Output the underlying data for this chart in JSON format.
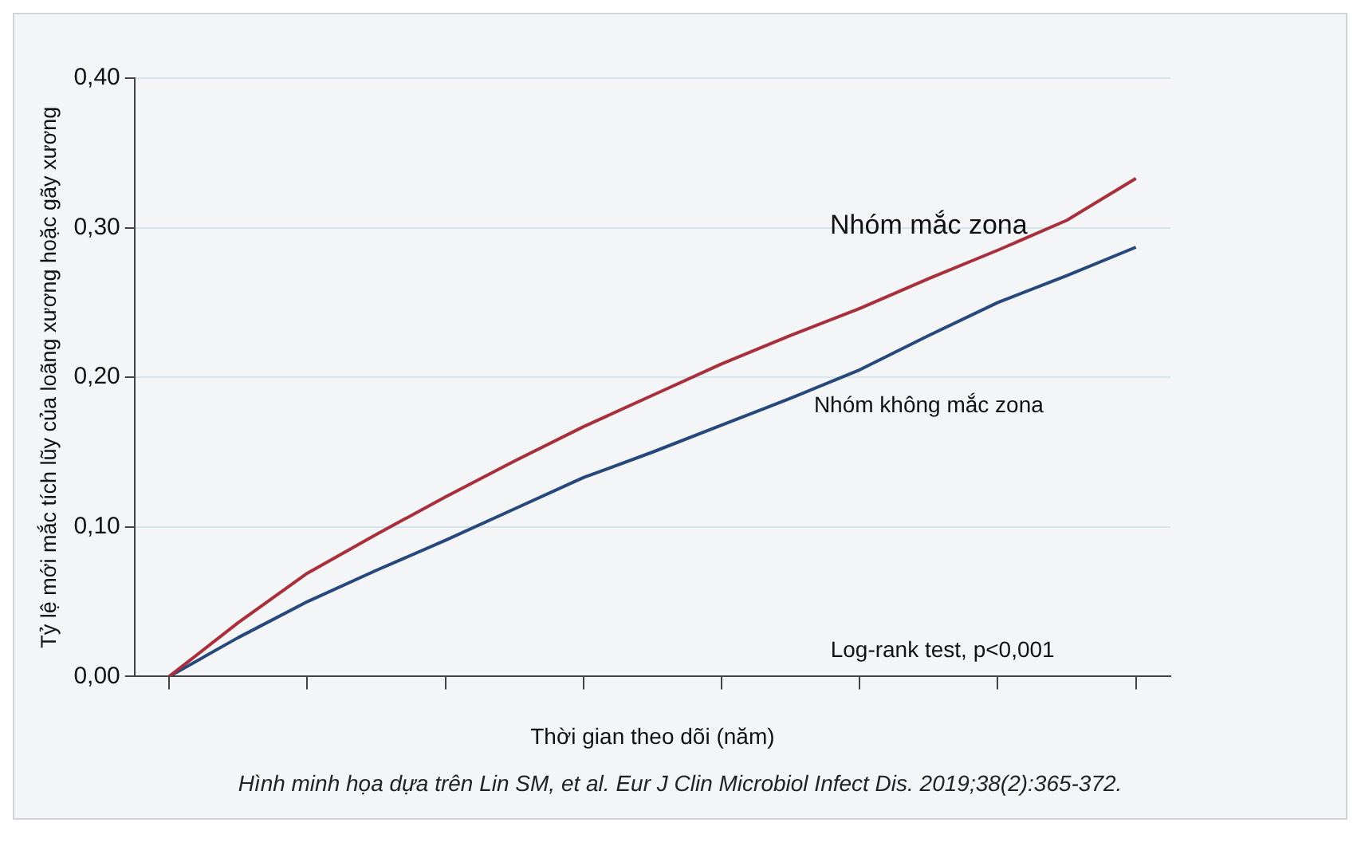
{
  "chart_data": {
    "type": "line",
    "xlabel": "Thời gian theo dõi (năm)",
    "ylabel": "Tỷ lệ mới mắc tích lũy của loãng xương hoặc gãy xương",
    "categories": [
      null,
      null,
      null,
      null,
      null,
      null,
      null,
      null,
      null,
      null,
      null,
      null,
      null,
      null,
      null
    ],
    "series": [
      {
        "name": "Nhóm mắc zona",
        "color": "#a8303c",
        "values": [
          0,
          0.036,
          0.069,
          0.095,
          0.12,
          0.144,
          0.167,
          0.188,
          0.209,
          0.228,
          0.246,
          0.266,
          0.285,
          0.305,
          0.333
        ]
      },
      {
        "name": "Nhóm không mắc zona",
        "color": "#27487a",
        "values": [
          0,
          0.026,
          0.05,
          0.071,
          0.091,
          0.112,
          0.133,
          0.15,
          0.168,
          0.186,
          0.205,
          0.228,
          0.25,
          0.268,
          0.287
        ]
      }
    ],
    "ylim": [
      0,
      0.4
    ],
    "yticks": [
      {
        "value": 0,
        "label": "0,00"
      },
      {
        "value": 0.1,
        "label": "0,10"
      },
      {
        "value": 0.2,
        "label": "0,20"
      },
      {
        "value": 0.3,
        "label": "0,30"
      },
      {
        "value": 0.4,
        "label": "0,40"
      }
    ],
    "grid": "y",
    "legend": false,
    "tick_labels": "y",
    "marker": "none",
    "line_style": "solid",
    "annotations": [
      "Log-rank test, p<0,001",
      "Hình minh họa dựa trên Lin SM, et al. Eur J Clin Microbiol Infect Dis. 2019;38(2):365-372."
    ]
  }
}
